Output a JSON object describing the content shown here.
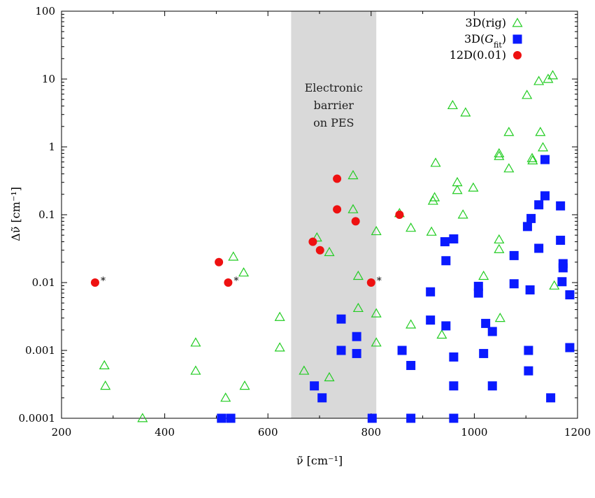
{
  "chart_data": {
    "type": "scatter",
    "xlabel": "ν̃ [cm⁻¹]",
    "ylabel": "Δν̃ [cm⁻¹]",
    "xlim": [
      200,
      1200
    ],
    "ylim": [
      0.0001,
      100
    ],
    "yscale": "log",
    "grid": false,
    "legend_position": "top-right",
    "x_ticks": [
      "200",
      "400",
      "600",
      "800",
      "1000",
      "1200"
    ],
    "y_ticks": [
      "0.0001",
      "0.001",
      "0.01",
      "0.1",
      "1",
      "10",
      "100"
    ],
    "x_tick_values": [
      200,
      400,
      600,
      800,
      1000,
      1200
    ],
    "y_tick_values": [
      0.0001,
      0.001,
      0.01,
      0.1,
      1,
      10,
      100
    ],
    "band": {
      "x_range": [
        645,
        810
      ],
      "label_lines": [
        "Electronic",
        "barrier",
        "on PES"
      ],
      "color": "#d9d9d9"
    },
    "series": [
      {
        "name": "3D(rig)",
        "marker": "open-triangle",
        "color": "#22cc22",
        "points": [
          [
            283,
            0.0006
          ],
          [
            285,
            0.0003
          ],
          [
            357,
            0.0001
          ],
          [
            460,
            0.0013
          ],
          [
            460,
            0.0005
          ],
          [
            518,
            0.0002
          ],
          [
            533,
            0.024
          ],
          [
            553,
            0.014
          ],
          [
            555,
            0.0003
          ],
          [
            623,
            0.0031
          ],
          [
            623,
            0.0011
          ],
          [
            670,
            0.0005
          ],
          [
            695,
            0.046
          ],
          [
            719,
            0.0004
          ],
          [
            719,
            0.028
          ],
          [
            765,
            0.38
          ],
          [
            765,
            0.12
          ],
          [
            775,
            0.0125
          ],
          [
            775,
            0.0042
          ],
          [
            810,
            0.057
          ],
          [
            810,
            0.0035
          ],
          [
            810,
            0.0013
          ],
          [
            855,
            0.105
          ],
          [
            877,
            0.064
          ],
          [
            877,
            0.0024
          ],
          [
            917,
            0.056
          ],
          [
            920,
            0.16
          ],
          [
            923,
            0.18
          ],
          [
            925,
            0.58
          ],
          [
            937,
            0.0017
          ],
          [
            958,
            4.1
          ],
          [
            967,
            0.3
          ],
          [
            967,
            0.23
          ],
          [
            978,
            0.1
          ],
          [
            983,
            3.2
          ],
          [
            998,
            0.25
          ],
          [
            1018,
            0.0125
          ],
          [
            1048,
            0.8
          ],
          [
            1048,
            0.73
          ],
          [
            1048,
            0.043
          ],
          [
            1048,
            0.031
          ],
          [
            1050,
            0.003
          ],
          [
            1067,
            1.65
          ],
          [
            1067,
            0.48
          ],
          [
            1102,
            5.8
          ],
          [
            1112,
            0.68
          ],
          [
            1113,
            0.63
          ],
          [
            1125,
            9.3
          ],
          [
            1128,
            1.65
          ],
          [
            1133,
            0.98
          ],
          [
            1143,
            10.0
          ],
          [
            1152,
            11.3
          ],
          [
            1155,
            0.009
          ]
        ]
      },
      {
        "name": "3D(G_fit)",
        "marker": "filled-square",
        "color": "#0a1aff",
        "points": [
          [
            510,
            0.0001
          ],
          [
            528,
            0.0001
          ],
          [
            690,
            0.0003
          ],
          [
            705,
            0.0002
          ],
          [
            742,
            0.0029
          ],
          [
            742,
            0.001
          ],
          [
            772,
            0.0016
          ],
          [
            772,
            0.0009
          ],
          [
            802,
            0.0001
          ],
          [
            860,
            0.001
          ],
          [
            877,
            0.0006
          ],
          [
            877,
            0.0001
          ],
          [
            915,
            0.0073
          ],
          [
            915,
            0.0028
          ],
          [
            943,
            0.04
          ],
          [
            945,
            0.021
          ],
          [
            945,
            0.0023
          ],
          [
            960,
            0.044
          ],
          [
            960,
            0.0008
          ],
          [
            960,
            0.0003
          ],
          [
            960,
            0.0001
          ],
          [
            1008,
            0.0088
          ],
          [
            1008,
            0.007
          ],
          [
            1018,
            0.0009
          ],
          [
            1022,
            0.0025
          ],
          [
            1035,
            0.0019
          ],
          [
            1035,
            0.0003
          ],
          [
            1077,
            0.025
          ],
          [
            1077,
            0.0096
          ],
          [
            1103,
            0.067
          ],
          [
            1105,
            0.001
          ],
          [
            1105,
            0.0005
          ],
          [
            1108,
            0.0078
          ],
          [
            1110,
            0.088
          ],
          [
            1125,
            0.14
          ],
          [
            1125,
            0.032
          ],
          [
            1137,
            0.65
          ],
          [
            1137,
            0.19
          ],
          [
            1148,
            0.0002
          ],
          [
            1167,
            0.135
          ],
          [
            1167,
            0.042
          ],
          [
            1170,
            0.0103
          ],
          [
            1172,
            0.019
          ],
          [
            1172,
            0.0165
          ],
          [
            1185,
            0.0066
          ],
          [
            1185,
            0.0011
          ]
        ]
      },
      {
        "name": "12D(0.01)",
        "marker": "filled-circle",
        "color": "#ee1111",
        "points": [
          [
            265,
            0.01
          ],
          [
            505,
            0.02
          ],
          [
            523,
            0.01
          ],
          [
            687,
            0.04
          ],
          [
            701,
            0.03
          ],
          [
            734,
            0.34
          ],
          [
            734,
            0.12
          ],
          [
            770,
            0.08
          ],
          [
            800,
            0.01
          ],
          [
            855,
            0.1
          ]
        ]
      }
    ],
    "asterisk_notes": [
      {
        "x": 265,
        "y": 0.01,
        "text": "*"
      },
      {
        "x": 523,
        "y": 0.01,
        "text": "*"
      },
      {
        "x": 800,
        "y": 0.01,
        "text": "*"
      }
    ]
  }
}
